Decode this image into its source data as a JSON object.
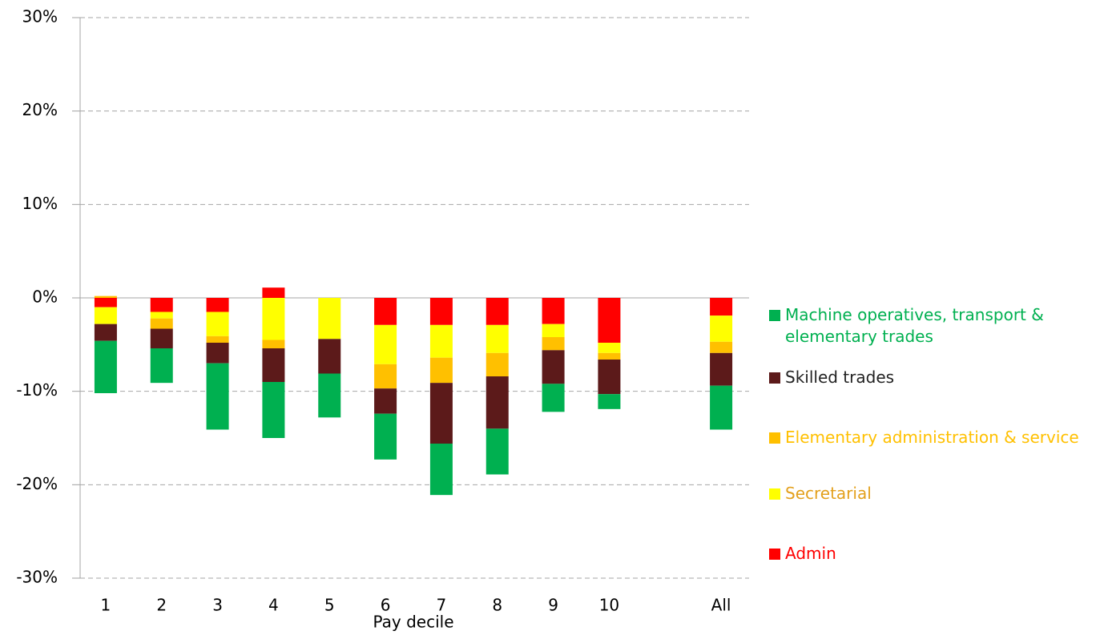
{
  "chart_data": {
    "type": "stacked_bar",
    "x_label": "Pay decile",
    "categories": [
      "1",
      "2",
      "3",
      "4",
      "5",
      "6",
      "7",
      "8",
      "9",
      "10",
      null,
      "All"
    ],
    "series": [
      {
        "name": "Machine operatives, transport & elementary trades",
        "color": "#00b050",
        "values": [
          -5.6,
          -3.7,
          -7.1,
          -6.0,
          -4.7,
          -4.9,
          -5.5,
          -4.9,
          -3.0,
          -1.6,
          null,
          -4.7
        ]
      },
      {
        "name": "Skilled trades",
        "color": "#5c1a1a",
        "values": [
          -1.8,
          -2.1,
          -2.2,
          -3.6,
          -3.7,
          -2.7,
          -6.5,
          -5.6,
          -3.6,
          -3.7,
          null,
          -3.5
        ]
      },
      {
        "name": "Elementary administration & service",
        "color": "#ffc000",
        "values": [
          0.2,
          -1.1,
          -0.7,
          -0.9,
          0,
          -2.6,
          -2.7,
          -2.5,
          -1.4,
          -0.7,
          null,
          -1.2
        ]
      },
      {
        "name": "Secretarial",
        "color": "#ffff00",
        "values": [
          -1.8,
          -0.7,
          -2.6,
          -4.5,
          -4.4,
          -4.2,
          -3.5,
          -3.0,
          -1.4,
          -1.1,
          null,
          -2.8
        ]
      },
      {
        "name": "Admin",
        "color": "#ff0000",
        "values": [
          -1.0,
          -1.5,
          -1.5,
          1.1,
          0,
          -2.9,
          -2.9,
          -2.9,
          -2.8,
          -4.8,
          null,
          -1.9
        ]
      }
    ],
    "ylim": [
      -30,
      30
    ],
    "yticks": [
      {
        "value": -30,
        "label": "-30%"
      },
      {
        "value": -20,
        "label": "-20%"
      },
      {
        "value": -10,
        "label": "-10%"
      },
      {
        "value": 0,
        "label": "0%"
      },
      {
        "value": 10,
        "label": "10%"
      },
      {
        "value": 20,
        "label": "20%"
      },
      {
        "value": 30,
        "label": "30%"
      }
    ],
    "grid": true
  }
}
